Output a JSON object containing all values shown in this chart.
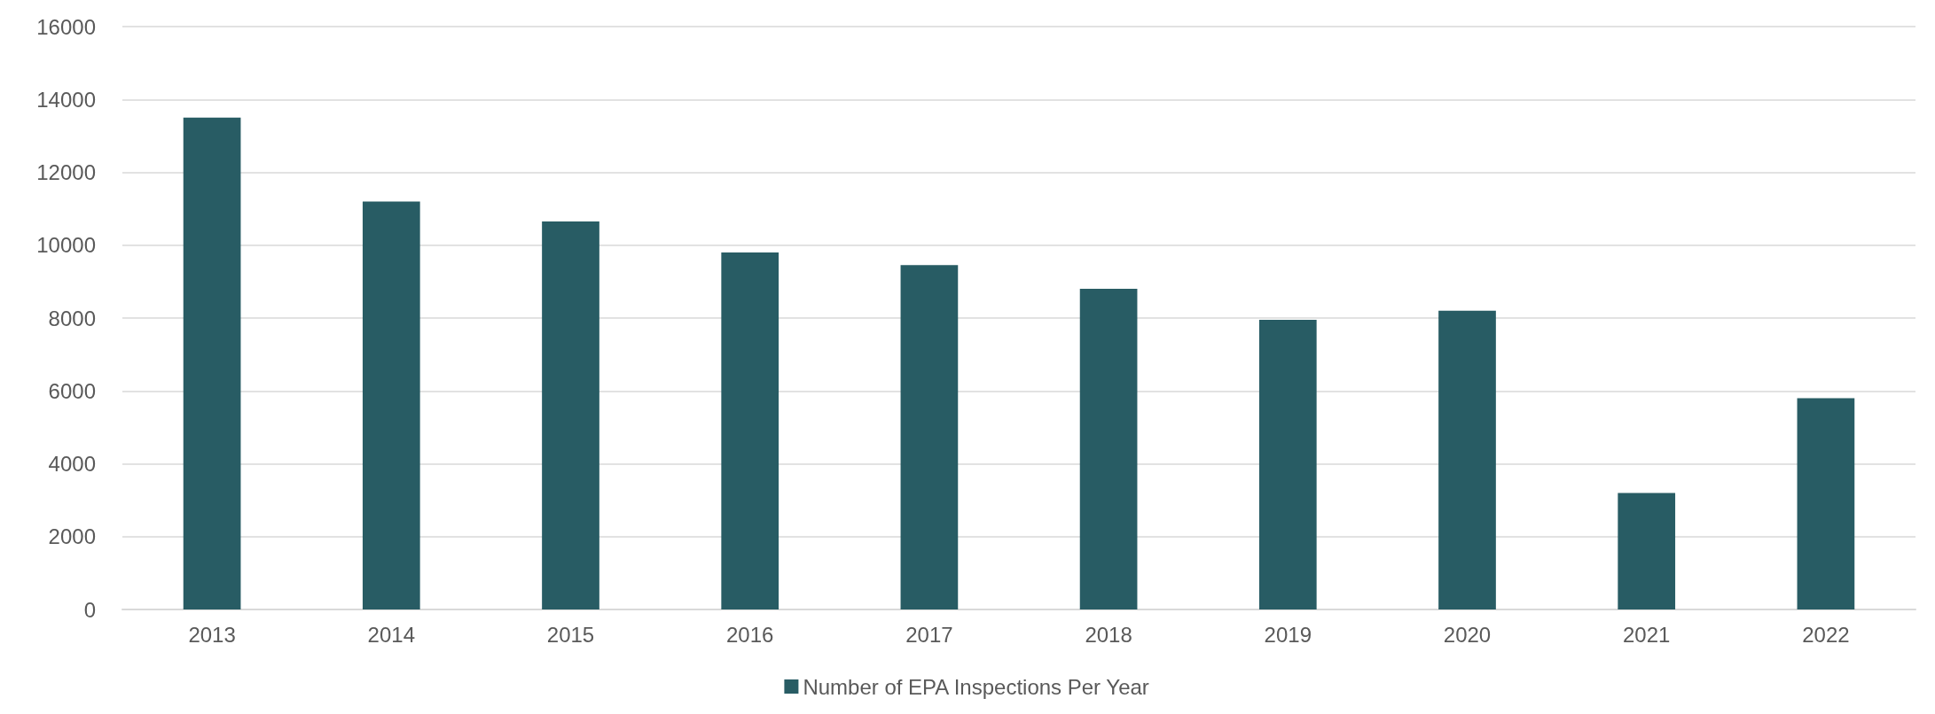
{
  "chart_data": {
    "type": "bar",
    "categories": [
      "2013",
      "2014",
      "2015",
      "2016",
      "2017",
      "2018",
      "2019",
      "2020",
      "2021",
      "2022"
    ],
    "series": [
      {
        "name": "Number of EPA Inspections Per Year",
        "color": "#285c64",
        "values": [
          13500,
          11200,
          10650,
          9800,
          9450,
          8800,
          7950,
          8200,
          3200,
          5800
        ]
      }
    ],
    "ylim": [
      0,
      16000
    ],
    "yticks": [
      0,
      2000,
      4000,
      6000,
      8000,
      10000,
      12000,
      14000,
      16000
    ],
    "grid": "y",
    "legend": "bottom"
  }
}
